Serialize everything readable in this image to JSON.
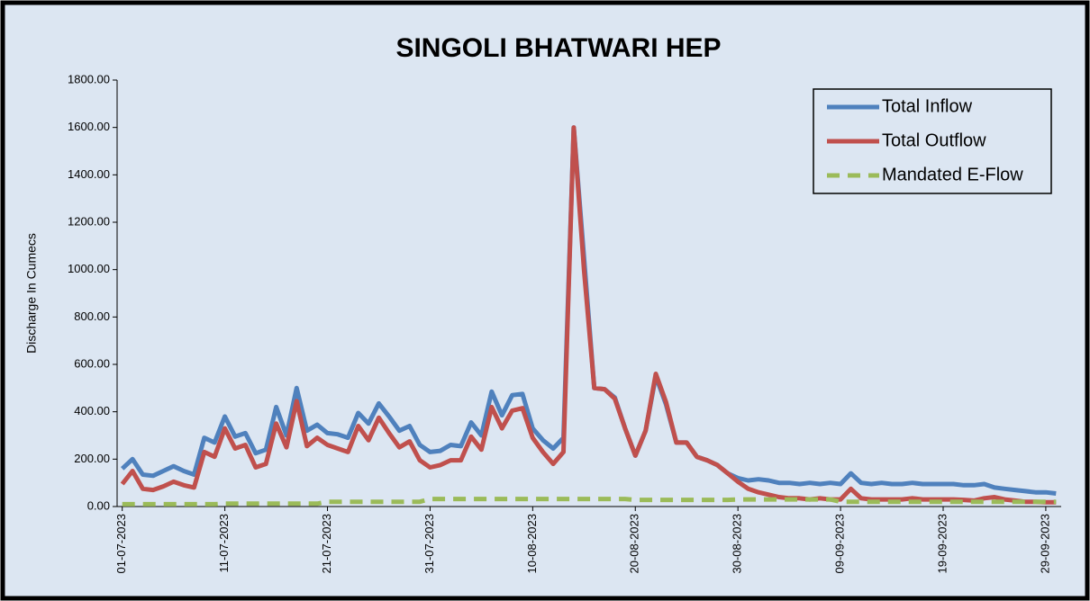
{
  "chart_data": {
    "type": "line",
    "title": "SINGOLI BHATWARI HEP",
    "y_label": "Discharge In Cumecs",
    "categories": [
      "01-07-2023",
      null,
      null,
      null,
      null,
      null,
      null,
      null,
      null,
      null,
      "11-07-2023",
      null,
      null,
      null,
      null,
      null,
      null,
      null,
      null,
      null,
      "21-07-2023",
      null,
      null,
      null,
      null,
      null,
      null,
      null,
      null,
      null,
      "31-07-2023",
      null,
      null,
      null,
      null,
      null,
      null,
      null,
      null,
      null,
      "10-08-2023",
      null,
      null,
      null,
      null,
      null,
      null,
      null,
      null,
      null,
      "20-08-2023",
      null,
      null,
      null,
      null,
      null,
      null,
      null,
      null,
      null,
      "30-08-2023",
      null,
      null,
      null,
      null,
      null,
      null,
      null,
      null,
      null,
      "09-09-2023",
      null,
      null,
      null,
      null,
      null,
      null,
      null,
      null,
      null,
      "19-09-2023",
      null,
      null,
      null,
      null,
      null,
      null,
      null,
      null,
      null,
      "29-09-2023",
      null
    ],
    "series": [
      {
        "name": "Total Inflow",
        "color": "#4f81bd",
        "line_style": "solid",
        "values": [
          160,
          200,
          135,
          130,
          150,
          170,
          150,
          135,
          290,
          270,
          380,
          295,
          310,
          225,
          240,
          420,
          300,
          500,
          320,
          345,
          310,
          305,
          290,
          395,
          350,
          435,
          380,
          320,
          340,
          260,
          230,
          235,
          260,
          255,
          355,
          300,
          485,
          385,
          470,
          475,
          330,
          280,
          245,
          290,
          1600,
          1050,
          500,
          495,
          460,
          330,
          215,
          320,
          550,
          430,
          270,
          270,
          210,
          195,
          175,
          140,
          120,
          110,
          115,
          110,
          100,
          100,
          95,
          100,
          95,
          100,
          95,
          140,
          100,
          95,
          100,
          95,
          95,
          100,
          95,
          95,
          95,
          95,
          90,
          90,
          95,
          80,
          75,
          70,
          65,
          60,
          60,
          55
        ]
      },
      {
        "name": "Total Outflow",
        "color": "#c0504d",
        "line_style": "solid",
        "values": [
          95,
          150,
          75,
          70,
          85,
          105,
          90,
          80,
          230,
          210,
          330,
          245,
          260,
          165,
          180,
          350,
          250,
          445,
          255,
          290,
          260,
          245,
          230,
          340,
          280,
          375,
          310,
          250,
          275,
          195,
          165,
          175,
          195,
          195,
          295,
          240,
          420,
          330,
          405,
          415,
          290,
          230,
          180,
          230,
          1600,
          1000,
          500,
          495,
          455,
          330,
          215,
          320,
          560,
          440,
          270,
          270,
          210,
          195,
          175,
          140,
          105,
          75,
          60,
          50,
          40,
          35,
          35,
          30,
          35,
          30,
          30,
          75,
          35,
          30,
          30,
          30,
          30,
          35,
          30,
          30,
          30,
          30,
          28,
          25,
          35,
          40,
          30,
          25,
          20,
          20,
          18,
          18
        ]
      },
      {
        "name": "Mandated E-Flow",
        "color": "#9bbb59",
        "line_style": "dashed",
        "values": [
          10,
          10,
          10,
          10,
          10,
          10,
          10,
          10,
          10,
          10,
          12,
          12,
          12,
          12,
          12,
          12,
          12,
          12,
          12,
          12,
          20,
          20,
          20,
          20,
          20,
          20,
          20,
          20,
          20,
          20,
          32,
          32,
          32,
          32,
          32,
          32,
          32,
          32,
          32,
          32,
          32,
          32,
          32,
          32,
          32,
          32,
          32,
          32,
          32,
          32,
          28,
          28,
          28,
          28,
          28,
          28,
          28,
          28,
          28,
          28,
          30,
          30,
          30,
          30,
          30,
          30,
          30,
          30,
          30,
          30,
          20,
          20,
          20,
          20,
          20,
          20,
          20,
          20,
          20,
          20,
          20,
          20,
          20,
          20,
          20,
          20,
          20,
          20,
          20,
          20,
          20,
          20
        ]
      }
    ],
    "ylim": [
      0,
      1800
    ],
    "yticks": [
      {
        "value": 0,
        "label": "0.00"
      },
      {
        "value": 200,
        "label": "200.00"
      },
      {
        "value": 400,
        "label": "400.00"
      },
      {
        "value": 600,
        "label": "600.00"
      },
      {
        "value": 800,
        "label": "800.00"
      },
      {
        "value": 1000,
        "label": "1000.00"
      },
      {
        "value": 1200,
        "label": "1200.00"
      },
      {
        "value": 1400,
        "label": "1400.00"
      },
      {
        "value": 1600,
        "label": "1600.00"
      },
      {
        "value": 1800,
        "label": "1800.00"
      }
    ],
    "grid": false,
    "legend": "top-right"
  }
}
